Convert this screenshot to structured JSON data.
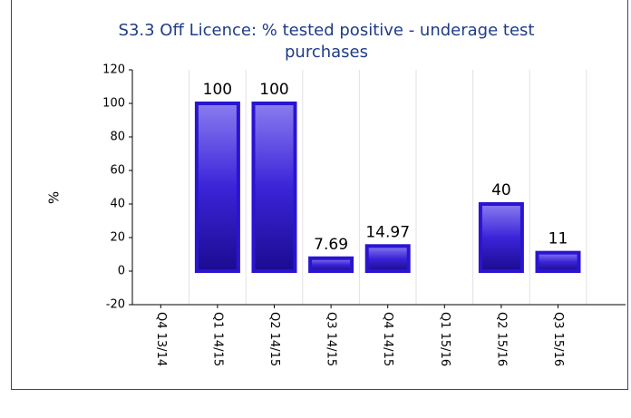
{
  "chart_data": {
    "type": "bar",
    "title": "S3.3 Off Licence: % tested positive - underage test purchases",
    "ylabel": "%",
    "categories": [
      "Q4 13/14",
      "Q1 14/15",
      "Q2 14/15",
      "Q3 14/15",
      "Q4 14/15",
      "Q1 15/16",
      "Q2 15/16",
      "Q3 15/16"
    ],
    "values": [
      null,
      100,
      100,
      7.69,
      14.97,
      null,
      40,
      11
    ],
    "color": "#2a14d0",
    "ylim": [
      -20,
      120
    ],
    "yticks": [
      -20,
      0,
      20,
      40,
      60,
      80,
      100,
      120
    ],
    "grid": true
  }
}
